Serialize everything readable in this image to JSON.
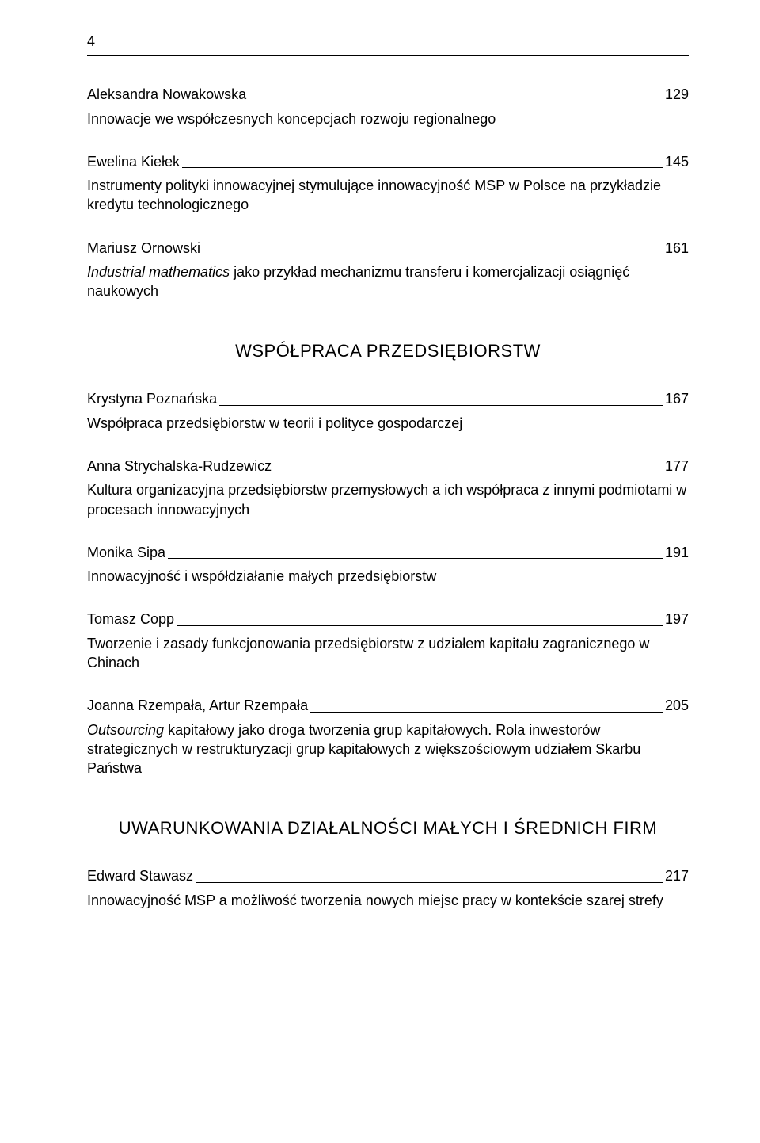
{
  "page_number": "4",
  "entries_top": [
    {
      "author": "Aleksandra Nowakowska",
      "page": "129",
      "title_html": "Innowacje we współczesnych koncepcjach rozwoju regionalnego"
    },
    {
      "author": "Ewelina Kiełek",
      "page": "145",
      "title_html": "Instrumenty polityki innowacyjnej stymulujące innowacyjność MSP w Polsce na przykładzie kredytu technologicznego"
    },
    {
      "author": "Mariusz Ornowski",
      "page": "161",
      "title_html": "<em>Industrial mathematics</em> jako przykład mechanizmu transferu i komercjalizacji osiągnięć naukowych"
    }
  ],
  "section1": "WSPÓŁPRACA PRZEDSIĘBIORSTW",
  "entries_mid": [
    {
      "author": "Krystyna Poznańska",
      "page": "167",
      "title_html": "Współpraca przedsiębiorstw w teorii i polityce gospodarczej"
    },
    {
      "author": "Anna Strychalska-Rudzewicz",
      "page": "177",
      "title_html": "Kultura organizacyjna przedsiębiorstw przemysłowych a ich współpraca z innymi podmiotami w procesach innowacyjnych"
    },
    {
      "author": "Monika Sipa",
      "page": "191",
      "title_html": "Innowacyjność i współdziałanie małych przedsiębiorstw"
    },
    {
      "author": "Tomasz Copp",
      "page": "197",
      "title_html": "Tworzenie i zasady funkcjonowania przedsiębiorstw z udziałem kapitału zagranicznego w Chinach"
    },
    {
      "author": "Joanna Rzempała, Artur Rzempała",
      "page": "205",
      "title_html": "<em>Outsourcing</em> kapitałowy jako droga tworzenia grup kapitałowych. Rola inwestorów strategicznych w restrukturyzacji grup kapitałowych z większościowym udziałem Skarbu Państwa"
    }
  ],
  "section2": "UWARUNKOWANIA DZIAŁALNOŚCI MAŁYCH I ŚREDNICH FIRM",
  "entries_bot": [
    {
      "author": "Edward Stawasz",
      "page": "217",
      "title_html": "Innowacyjność MSP a możliwość tworzenia nowych miejsc pracy w kontekście szarej strefy"
    }
  ]
}
